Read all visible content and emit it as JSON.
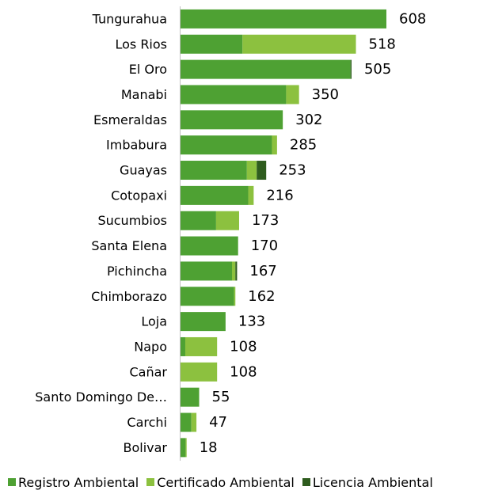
{
  "chart_data": {
    "type": "bar",
    "orientation": "horizontal",
    "stacked": true,
    "categories": [
      "Tungurahua",
      "Los Rios",
      "El Oro",
      "Manabi",
      "Esmeraldas",
      "Imbabura",
      "Guayas",
      "Cotopaxi",
      "Sucumbios",
      "Santa Elena",
      "Pichincha",
      "Chimborazo",
      "Loja",
      "Napo",
      "Cañar",
      "Santo Domingo De…",
      "Carchi",
      "Bolivar"
    ],
    "totals": [
      608,
      518,
      505,
      350,
      302,
      285,
      253,
      216,
      173,
      170,
      167,
      162,
      133,
      108,
      108,
      55,
      47,
      18
    ],
    "series": [
      {
        "name": "Registro Ambiental",
        "color": "#4EA133",
        "values": [
          608,
          183,
          502,
          312,
          302,
          270,
          196,
          200,
          105,
          170,
          152,
          158,
          133,
          14,
          0,
          55,
          32,
          15
        ]
      },
      {
        "name": "Certificado Ambiental",
        "color": "#8CC13F",
        "values": [
          0,
          335,
          0,
          38,
          0,
          15,
          29,
          16,
          68,
          0,
          10,
          4,
          0,
          94,
          108,
          0,
          15,
          3
        ]
      },
      {
        "name": "Licencia Ambiental",
        "color": "#2E5C1E",
        "values": [
          0,
          0,
          3,
          0,
          0,
          0,
          28,
          0,
          0,
          0,
          5,
          0,
          0,
          0,
          0,
          0,
          0,
          0
        ]
      }
    ],
    "xlim": [
      0,
      608
    ],
    "grid": false,
    "legend_position": "bottom"
  }
}
